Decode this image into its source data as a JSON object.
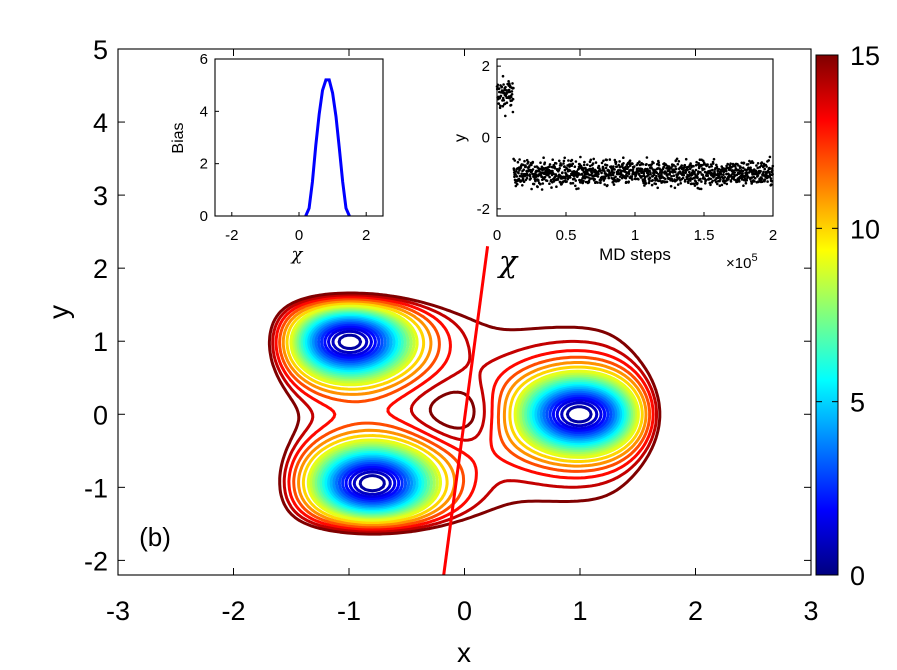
{
  "chart_data": [
    {
      "type": "contour",
      "id": "main",
      "title": "",
      "xlabel": "x",
      "ylabel": "y",
      "xlim": [
        -3,
        3
      ],
      "ylim": [
        -2.2,
        5
      ],
      "xticks": [
        -3,
        -2,
        -1,
        0,
        1,
        2,
        3
      ],
      "yticks": [
        -2,
        -1,
        0,
        1,
        2,
        3,
        4,
        5
      ],
      "panel_label": "(b)",
      "minima": [
        {
          "x": -1.0,
          "y": 1.0
        },
        {
          "x": -0.8,
          "y": -0.95
        },
        {
          "x": 1.0,
          "y": 0.0
        }
      ],
      "saddle_x": 0.0,
      "saddle_y": 0.0,
      "levels": [
        0.5,
        1,
        1.5,
        2,
        2.5,
        3,
        3.5,
        4,
        4.5,
        5,
        5.5,
        6,
        6.5,
        7,
        7.5,
        8,
        8.5,
        9,
        10,
        11,
        12,
        13,
        14,
        15
      ],
      "colorbar": {
        "min": 0,
        "max": 15,
        "ticks": [
          0,
          5,
          10,
          15
        ],
        "colormap": "jet"
      },
      "cv_line": {
        "label": "χ",
        "color": "#ff0000",
        "points": [
          [
            -0.18,
            -2.2
          ],
          [
            0.2,
            2.3
          ]
        ]
      }
    },
    {
      "type": "line",
      "id": "bias_inset",
      "xlabel": "χ",
      "ylabel": "Bias",
      "xlim": [
        -2.5,
        2.5
      ],
      "ylim": [
        0,
        6
      ],
      "xticks": [
        -2,
        0,
        2
      ],
      "yticks": [
        0,
        2,
        4,
        6
      ],
      "color": "#0000ff",
      "x": [
        0.2,
        0.3,
        0.4,
        0.5,
        0.6,
        0.7,
        0.8,
        0.9,
        1.0,
        1.1,
        1.2,
        1.3,
        1.4,
        1.5
      ],
      "y": [
        0.0,
        0.3,
        1.3,
        2.7,
        3.9,
        4.8,
        5.2,
        5.2,
        4.7,
        3.8,
        2.6,
        1.3,
        0.3,
        0.0
      ]
    },
    {
      "type": "scatter",
      "id": "trajectory_inset",
      "xlabel": "MD steps",
      "ylabel": "y",
      "xlim": [
        0,
        200000
      ],
      "ylim": [
        -2.2,
        2.2
      ],
      "xticks": [
        0,
        0.5,
        1,
        1.5,
        2
      ],
      "yticks": [
        -2,
        0,
        2
      ],
      "x_multiplier": "×10",
      "x_exponent": "5",
      "color": "#000000",
      "segments": [
        {
          "x_start": 0,
          "x_end": 12000,
          "y_mean": 1.2,
          "y_spread": 0.45
        },
        {
          "x_start": 12000,
          "x_end": 200000,
          "y_mean": -1.0,
          "y_spread": 0.35
        }
      ]
    }
  ]
}
